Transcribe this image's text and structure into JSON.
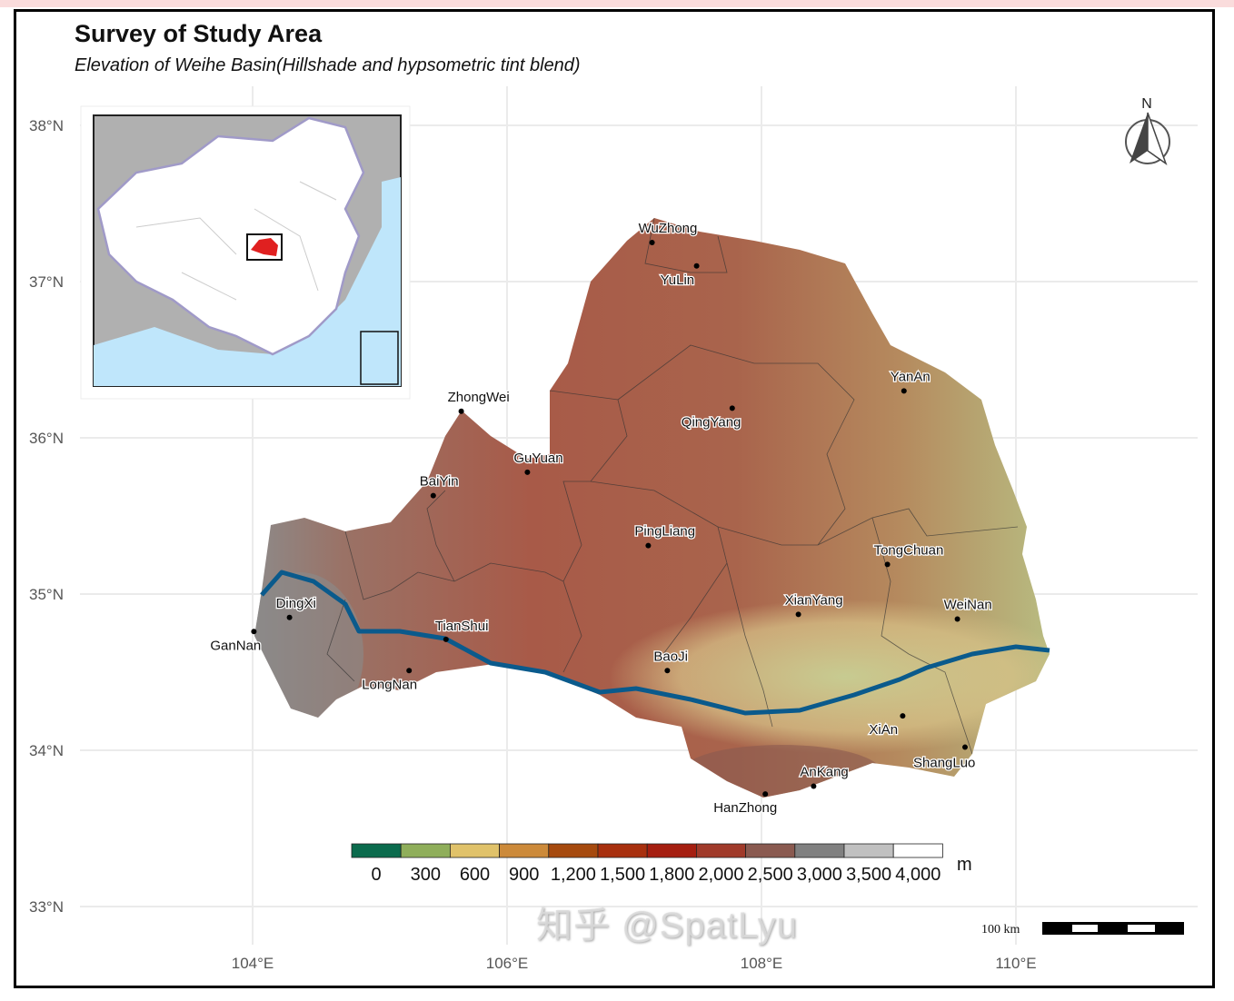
{
  "title": "Survey of Study Area",
  "subtitle": "Elevation of Weihe Basin(Hillshade and hypsometric tint blend)",
  "axes": {
    "lon_ticks": [
      {
        "value": 104,
        "label": "104°E"
      },
      {
        "value": 106,
        "label": "106°E"
      },
      {
        "value": 108,
        "label": "108°E"
      },
      {
        "value": 110,
        "label": "110°E"
      }
    ],
    "lat_ticks": [
      {
        "value": 38,
        "label": "38°N"
      },
      {
        "value": 37,
        "label": "37°N"
      },
      {
        "value": 36,
        "label": "36°N"
      },
      {
        "value": 35,
        "label": "35°N"
      },
      {
        "value": 34,
        "label": "34°N"
      },
      {
        "value": 33,
        "label": "33°N"
      }
    ],
    "grid": true
  },
  "cities": [
    {
      "name": "WuZhong",
      "lon": 107.14,
      "lat": 37.25
    },
    {
      "name": "YuLin",
      "lon": 107.49,
      "lat": 37.1
    },
    {
      "name": "YanAn",
      "lon": 109.12,
      "lat": 36.3
    },
    {
      "name": "QingYang",
      "lon": 107.77,
      "lat": 36.19
    },
    {
      "name": "ZhongWei",
      "lon": 105.64,
      "lat": 36.17
    },
    {
      "name": "GuYuan",
      "lon": 106.16,
      "lat": 35.78
    },
    {
      "name": "BaiYin",
      "lon": 105.42,
      "lat": 35.63
    },
    {
      "name": "PingLiang",
      "lon": 107.11,
      "lat": 35.31
    },
    {
      "name": "TongChuan",
      "lon": 108.99,
      "lat": 35.19
    },
    {
      "name": "XianYang",
      "lon": 108.29,
      "lat": 34.87
    },
    {
      "name": "WeiNan",
      "lon": 109.54,
      "lat": 34.84
    },
    {
      "name": "DingXi",
      "lon": 104.29,
      "lat": 34.85
    },
    {
      "name": "GanNan",
      "lon": 104.01,
      "lat": 34.76
    },
    {
      "name": "TianShui",
      "lon": 105.52,
      "lat": 34.71
    },
    {
      "name": "LongNan",
      "lon": 105.23,
      "lat": 34.51
    },
    {
      "name": "BaoJi",
      "lon": 107.26,
      "lat": 34.51
    },
    {
      "name": "XiAn",
      "lon": 109.11,
      "lat": 34.22
    },
    {
      "name": "ShangLuo",
      "lon": 109.6,
      "lat": 34.02
    },
    {
      "name": "AnKang",
      "lon": 108.41,
      "lat": 33.77
    },
    {
      "name": "HanZhong",
      "lon": 108.03,
      "lat": 33.72
    }
  ],
  "legend": {
    "unit": "m",
    "breaks": [
      "0",
      "300",
      "600",
      "900",
      "1,200",
      "1,500",
      "1,800",
      "2,000",
      "2,500",
      "3,000",
      "3,500",
      "4,000"
    ],
    "colors": [
      "#0b6b4d",
      "#8fae5a",
      "#e0c26a",
      "#cc8a3a",
      "#a64a0e",
      "#a8300e",
      "#a51e10",
      "#a03a2a",
      "#8a5a50",
      "#808080",
      "#c0c0c0",
      "#ffffff"
    ]
  },
  "north_arrow": {
    "label": "N"
  },
  "scale_bar": {
    "label": "100 km"
  },
  "river_color": "#0a5a8c",
  "inset_highlight_color": "#e02020",
  "watermark": "知乎 @SpatLyu"
}
